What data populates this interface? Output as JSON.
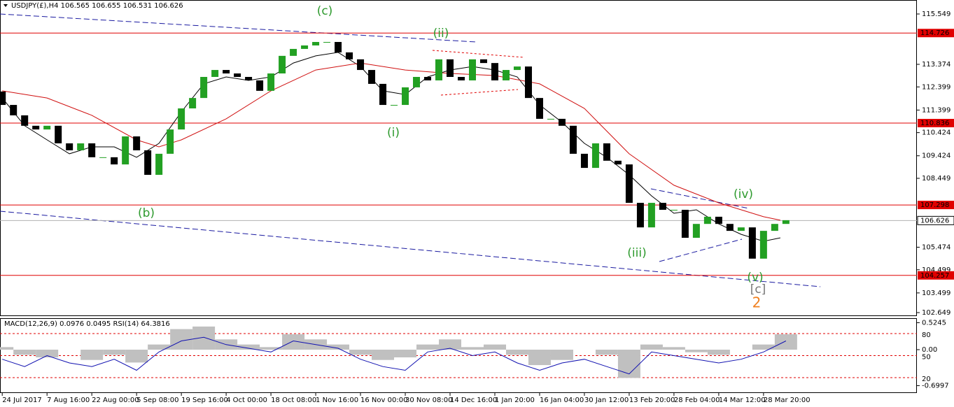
{
  "chart_data": [
    {
      "type": "candlestick",
      "title": "USDJPY(£),H4  106.565 106.655 106.531 106.626",
      "x": [
        0,
        1,
        2,
        3,
        4,
        5,
        6,
        7,
        8,
        9,
        10,
        11,
        12,
        13,
        14,
        15,
        16,
        17,
        18,
        19,
        20,
        21,
        22,
        23,
        24,
        25,
        26,
        27,
        28,
        29,
        30,
        31,
        32,
        33,
        34,
        35,
        36,
        37,
        38,
        39,
        40,
        41,
        42,
        43,
        44,
        45,
        46,
        47,
        48,
        49,
        50,
        51,
        52,
        53,
        54,
        55,
        56,
        57,
        58,
        59,
        60,
        61,
        62,
        63,
        64,
        65,
        66,
        67,
        68,
        69,
        70
      ],
      "open": [
        112.2,
        111.62,
        111.17,
        110.72,
        110.56,
        110.72,
        109.96,
        109.66,
        109.96,
        109.36,
        109.36,
        109.05,
        110.26,
        109.66,
        108.6,
        109.51,
        110.56,
        111.47,
        111.92,
        112.83,
        113.13,
        112.98,
        112.83,
        112.68,
        112.23,
        112.98,
        113.74,
        114.04,
        114.19,
        114.34,
        114.34,
        113.89,
        113.59,
        113.13,
        112.53,
        111.62,
        111.62,
        112.38,
        112.83,
        112.68,
        113.59,
        112.83,
        112.68,
        113.59,
        113.43,
        112.68,
        113.13,
        113.28,
        111.92,
        111.02,
        111.02,
        110.72,
        109.51,
        108.9,
        109.96,
        109.21,
        109.05,
        107.39,
        106.33,
        107.39,
        107.09,
        107.09,
        105.88,
        106.48,
        106.79,
        106.48,
        106.18,
        106.33,
        104.98,
        106.18,
        106.48
      ],
      "close": [
        111.62,
        111.17,
        110.72,
        110.56,
        110.72,
        109.96,
        109.66,
        109.96,
        109.36,
        109.36,
        109.05,
        110.26,
        109.66,
        108.6,
        109.51,
        110.56,
        111.47,
        111.92,
        112.83,
        113.13,
        112.98,
        112.83,
        112.68,
        112.23,
        112.98,
        113.74,
        114.04,
        114.19,
        114.34,
        114.34,
        113.89,
        113.59,
        113.13,
        112.53,
        111.62,
        111.62,
        112.38,
        112.83,
        112.68,
        113.59,
        112.83,
        112.68,
        113.59,
        113.43,
        112.68,
        113.13,
        113.28,
        111.92,
        111.02,
        111.02,
        110.72,
        109.51,
        108.9,
        109.96,
        109.21,
        109.05,
        107.39,
        106.33,
        107.39,
        107.09,
        107.09,
        105.88,
        106.48,
        106.79,
        106.48,
        106.18,
        106.33,
        104.98,
        106.18,
        106.48,
        106.64
      ],
      "up_color": "#22a022",
      "down_color": "#000000",
      "lines": [
        {
          "color": "#000000",
          "x": [
            0,
            2,
            4,
            6,
            8,
            10,
            12,
            14,
            16,
            18,
            20,
            22,
            24,
            26,
            28,
            30,
            32,
            34,
            36,
            38,
            40,
            42,
            44,
            46,
            48,
            50,
            52,
            54,
            56,
            58,
            60,
            62,
            64,
            66,
            68,
            69.5
          ],
          "values": [
            111.92,
            110.72,
            110.11,
            109.51,
            109.81,
            109.81,
            109.36,
            109.96,
            111.32,
            112.53,
            112.83,
            112.68,
            112.83,
            113.43,
            113.74,
            113.89,
            113.28,
            112.23,
            112.07,
            112.83,
            113.13,
            113.28,
            113.13,
            112.83,
            111.62,
            110.87,
            109.96,
            109.36,
            108.6,
            107.69,
            106.94,
            107.09,
            106.48,
            106.03,
            105.73,
            105.88
          ]
        },
        {
          "color": "#d01010",
          "x": [
            0,
            4,
            8,
            12,
            14,
            16,
            20,
            24,
            28,
            32,
            36,
            40,
            44,
            48,
            52,
            56,
            60,
            64,
            68,
            69.5
          ],
          "values": [
            112.23,
            111.92,
            111.17,
            110.11,
            109.81,
            110.11,
            111.02,
            112.23,
            113.13,
            113.43,
            113.13,
            112.98,
            112.89,
            112.53,
            111.47,
            109.51,
            108.15,
            107.39,
            106.79,
            106.64
          ]
        }
      ],
      "levels": [
        114.726,
        110.836,
        107.298,
        104.257
      ],
      "level_color": "#e00000",
      "current_price": 106.626,
      "annotations": [
        "(c)",
        "(ii)",
        "(i)",
        "(b)",
        "(iii)",
        "(iv)",
        "(v)",
        "[c]",
        "2"
      ],
      "xlim": [
        -0.2,
        81.7
      ],
      "ylim": [
        102.498,
        116.153
      ],
      "yticks": [
        115.549,
        113.374,
        112.399,
        111.399,
        110.424,
        109.424,
        108.449,
        105.474,
        104.499,
        103.499,
        102.649
      ],
      "xticks": [
        {
          "value": 0,
          "label": "24 Jul 2017"
        },
        {
          "value": 4,
          "label": "7 Aug 16:00"
        },
        {
          "value": 8,
          "label": "22 Aug 00:00"
        },
        {
          "value": 12,
          "label": "5 Sep 08:00"
        },
        {
          "value": 16,
          "label": "19 Sep 16:00"
        },
        {
          "value": 20,
          "label": "4 Oct 00:00"
        },
        {
          "value": 24,
          "label": "18 Oct 08:00"
        },
        {
          "value": 28,
          "label": "1 Nov 16:00"
        },
        {
          "value": 32,
          "label": "16 Nov 00:00"
        },
        {
          "value": 36,
          "label": "30 Nov 08:00"
        },
        {
          "value": 40,
          "label": "14 Dec 16:00"
        },
        {
          "value": 44,
          "label": "1 Jan 20:00"
        },
        {
          "value": 48,
          "label": "16 Jan 04:00"
        },
        {
          "value": 52,
          "label": "30 Jan 12:00"
        },
        {
          "value": 56,
          "label": "13 Feb 20:00"
        },
        {
          "value": 60,
          "label": "28 Feb 04:00"
        },
        {
          "value": 64,
          "label": "14 Mar 12:00"
        },
        {
          "value": 68,
          "label": "28 Mar 20:00"
        }
      ]
    },
    {
      "type": "indicator",
      "title": "MACD(12,26,9) 0.0976 0.0495 RSI(14) 64.3816",
      "x": [
        0,
        2,
        4,
        6,
        8,
        10,
        12,
        14,
        16,
        18,
        20,
        22,
        24,
        26,
        28,
        30,
        32,
        34,
        36,
        38,
        40,
        42,
        44,
        46,
        48,
        50,
        52,
        54,
        56,
        58,
        60,
        62,
        64,
        66,
        68,
        70
      ],
      "series": [
        {
          "name": "MACD",
          "color": "#c0c0c0",
          "values": [
            0.05,
            -0.1,
            -0.15,
            0,
            -0.2,
            -0.1,
            -0.25,
            0.1,
            0.4,
            0.45,
            0.2,
            0.1,
            0.05,
            0.3,
            0.2,
            0.1,
            -0.1,
            -0.2,
            -0.15,
            0.1,
            0.2,
            0.05,
            0.1,
            -0.1,
            -0.3,
            -0.2,
            0,
            -0.1,
            -0.55,
            0.1,
            0.05,
            -0.05,
            -0.1,
            0,
            0.1,
            0.3
          ]
        },
        {
          "name": "RSI",
          "color": "#1010b0",
          "axis": "y2",
          "values": [
            45,
            35,
            50,
            40,
            35,
            45,
            30,
            55,
            70,
            75,
            65,
            60,
            55,
            70,
            65,
            60,
            45,
            35,
            30,
            55,
            60,
            50,
            55,
            40,
            30,
            40,
            45,
            35,
            25,
            55,
            50,
            45,
            40,
            45,
            55,
            70
          ]
        }
      ],
      "ylim": [
        -0.843,
        0.612
      ],
      "yticks": [
        0.5245,
        {
          "value": 0,
          "label": "0.00"
        },
        -0.6997
      ],
      "y2lim": [
        -1,
        101
      ],
      "y2ticks": [
        80,
        50,
        20
      ]
    }
  ]
}
